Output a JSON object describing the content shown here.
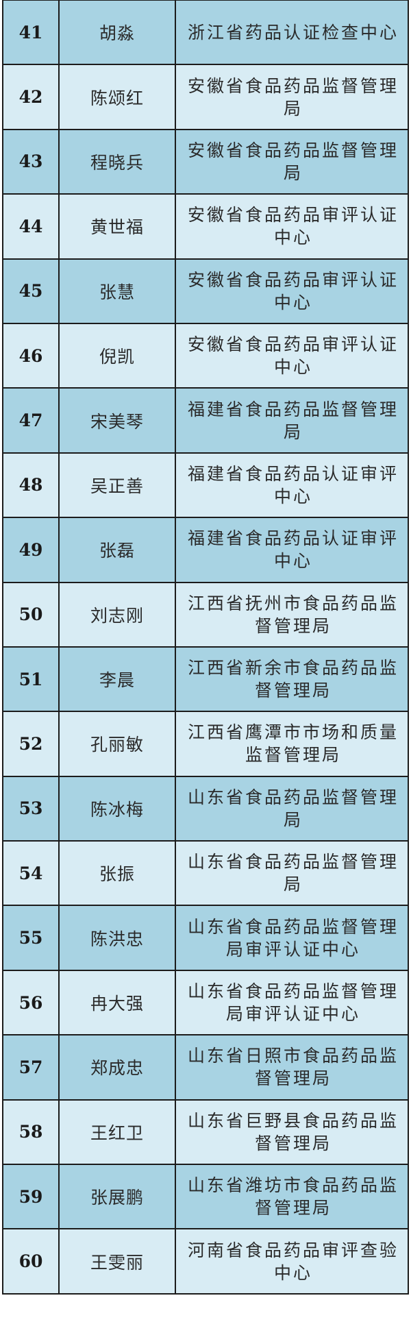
{
  "colors": {
    "row_dark": "#a8d3e3",
    "row_light": "#d8ecf4",
    "border": "#1b1b1b"
  },
  "rows": [
    {
      "no": "41",
      "name": "胡淼",
      "org": "浙江省药品认证检查中心"
    },
    {
      "no": "42",
      "name": "陈颂红",
      "org": "安徽省食品药品监督管理局"
    },
    {
      "no": "43",
      "name": "程晓兵",
      "org": "安徽省食品药品监督管理局"
    },
    {
      "no": "44",
      "name": "黄世福",
      "org": "安徽省食品药品审评认证中心"
    },
    {
      "no": "45",
      "name": "张慧",
      "org": "安徽省食品药品审评认证中心"
    },
    {
      "no": "46",
      "name": "倪凯",
      "org": "安徽省食品药品审评认证中心"
    },
    {
      "no": "47",
      "name": "宋美琴",
      "org": "福建省食品药品监督管理局"
    },
    {
      "no": "48",
      "name": "吴正善",
      "org": "福建省食品药品认证审评中心"
    },
    {
      "no": "49",
      "name": "张磊",
      "org": "福建省食品药品认证审评中心"
    },
    {
      "no": "50",
      "name": "刘志刚",
      "org": "江西省抚州市食品药品监督管理局"
    },
    {
      "no": "51",
      "name": "李晨",
      "org": "江西省新余市食品药品监督管理局"
    },
    {
      "no": "52",
      "name": "孔丽敏",
      "org": "江西省鹰潭市市场和质量监督管理局"
    },
    {
      "no": "53",
      "name": "陈冰梅",
      "org": "山东省食品药品监督管理局"
    },
    {
      "no": "54",
      "name": "张振",
      "org": "山东省食品药品监督管理局"
    },
    {
      "no": "55",
      "name": "陈洪忠",
      "org": "山东省食品药品监督管理局审评认证中心"
    },
    {
      "no": "56",
      "name": "冉大强",
      "org": "山东省食品药品监督管理局审评认证中心"
    },
    {
      "no": "57",
      "name": "郑成忠",
      "org": "山东省日照市食品药品监督管理局"
    },
    {
      "no": "58",
      "name": "王红卫",
      "org": "山东省巨野县食品药品监督管理局"
    },
    {
      "no": "59",
      "name": "张展鹏",
      "org": "山东省潍坊市食品药品监督管理局"
    },
    {
      "no": "60",
      "name": "王雯丽",
      "org": "河南省食品药品审评查验中心"
    }
  ]
}
